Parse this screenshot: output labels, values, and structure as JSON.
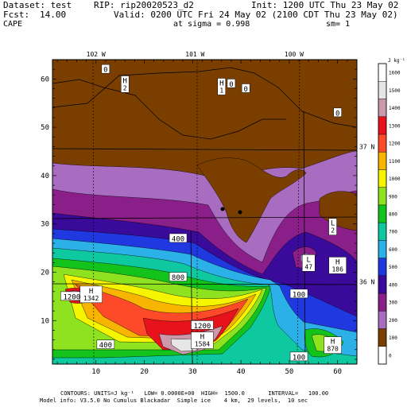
{
  "header": {
    "dataset": "Dataset: test",
    "rip": "RIP: rip20020523_d2",
    "init": "Init: 1200 UTC Thu 23 May 02",
    "fcst": "Fcst:",
    "fcst_value": "14.00",
    "valid": "Valid: 0200 UTC Fri 24 May 02 (2100 CDT Thu 23 May 02)",
    "field": "CAPE",
    "sigma": "at sigma = 0.998",
    "sm": "sm= 1"
  },
  "footer": {
    "line1": "CONTOURS: UNITS=J kg⁻¹   LOW= 0.0000E+00  HIGH=  1500.0       INTERVAL=   100.00",
    "line2": "Model info: V3.5.0 No Cumulus Blackadar  Simple ice    4 km,  29 levels,  10 sec"
  },
  "colors": {
    "land_brown": "#7a3f00",
    "frame": "#000000"
  },
  "chart_data": {
    "type": "heatmap",
    "title": "CAPE",
    "units": "J kg⁻¹",
    "xlim": [
      1,
      64
    ],
    "ylim": [
      1,
      64
    ],
    "x_ticks": [
      10,
      20,
      30,
      40,
      50,
      60
    ],
    "y_ticks": [
      10,
      20,
      30,
      40,
      50,
      60
    ],
    "longitude_labels": [
      {
        "label": "102 W",
        "x": 10
      },
      {
        "label": "101 W",
        "x": 30.5
      },
      {
        "label": "100 W",
        "x": 51
      }
    ],
    "latitude_labels": [
      {
        "label": "37 N",
        "y": 46
      },
      {
        "label": "36 N",
        "y": 18
      }
    ],
    "colorbar": {
      "unit_label": "J kg⁻¹",
      "levels": [
        {
          "value": 0,
          "label": "0",
          "color": "#ffffff"
        },
        {
          "value": 100,
          "label": "100",
          "color": "#7a3f00"
        },
        {
          "value": 200,
          "label": "200",
          "color": "#a86cc1"
        },
        {
          "value": 300,
          "label": "300",
          "color": "#8a1f8a"
        },
        {
          "value": 400,
          "label": "400",
          "color": "#3a0a9a"
        },
        {
          "value": 500,
          "label": "500",
          "color": "#2038e0"
        },
        {
          "value": 600,
          "label": "600",
          "color": "#2cb0e8"
        },
        {
          "value": 700,
          "label": "700",
          "color": "#0ec9a0"
        },
        {
          "value": 800,
          "label": "800",
          "color": "#13c21b"
        },
        {
          "value": 900,
          "label": "900",
          "color": "#8ee21f"
        },
        {
          "value": 1000,
          "label": "1000",
          "color": "#f5f500"
        },
        {
          "value": 1100,
          "label": "1100",
          "color": "#f7b500"
        },
        {
          "value": 1200,
          "label": "1200",
          "color": "#ff4a2a"
        },
        {
          "value": 1300,
          "label": "1300",
          "color": "#e8121c"
        },
        {
          "value": 1400,
          "label": "1400",
          "color": "#cc99aa"
        },
        {
          "value": 1500,
          "label": "1500",
          "color": "#e6e6e6"
        },
        {
          "value": 1600,
          "label": "1600",
          "color": "#ffffff"
        }
      ]
    },
    "contour_labels": [
      {
        "text": "400",
        "x": 27,
        "y": 27
      },
      {
        "text": "800",
        "x": 27,
        "y": 19
      },
      {
        "text": "1200",
        "x": 5,
        "y": 15
      },
      {
        "text": "1200",
        "x": 32,
        "y": 9
      },
      {
        "text": "100",
        "x": 52,
        "y": 15.5
      },
      {
        "text": "400",
        "x": 12,
        "y": 5
      },
      {
        "text": "100",
        "x": 52,
        "y": 2.5
      },
      {
        "text": "0",
        "x": 12,
        "y": 62
      },
      {
        "text": "0",
        "x": 38,
        "y": 59
      },
      {
        "text": "0",
        "x": 41,
        "y": 58
      },
      {
        "text": "0",
        "x": 60,
        "y": 53
      }
    ],
    "extrema": [
      {
        "kind": "H",
        "value": "2",
        "x": 16,
        "y": 59
      },
      {
        "kind": "H",
        "value": "1",
        "x": 36,
        "y": 58.5
      },
      {
        "kind": "L",
        "value": "2",
        "x": 59,
        "y": 29.5
      },
      {
        "kind": "L",
        "value": "47",
        "x": 54,
        "y": 22
      },
      {
        "kind": "H",
        "value": "186",
        "x": 60,
        "y": 21.5
      },
      {
        "kind": "H",
        "value": "1342",
        "x": 9,
        "y": 15.5
      },
      {
        "kind": "H",
        "value": "1584",
        "x": 32,
        "y": 6
      },
      {
        "kind": "H",
        "value": "870",
        "x": 59,
        "y": 5
      }
    ]
  }
}
